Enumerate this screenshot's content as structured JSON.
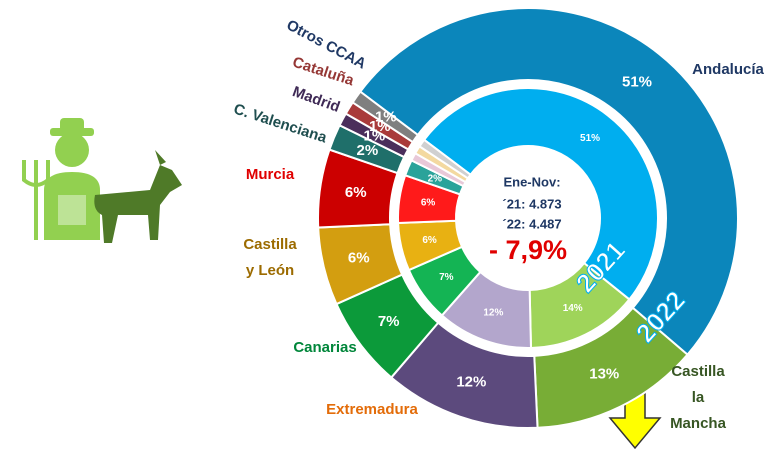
{
  "chart_data": {
    "type": "donut",
    "categories": [
      "Andalucía",
      "Castilla\nla Mancha",
      "Extremadura",
      "Canarias",
      "Castilla\ny León",
      "Murcia",
      "C. Valenciana",
      "Madrid",
      "Cataluña",
      "Otros CCAA"
    ],
    "category_colors": [
      "#1f3864",
      "#375623",
      "#e36c09",
      "#00863a",
      "#9c6b00",
      "#e00000",
      "#1f4e4f",
      "#3f2a56",
      "#953735",
      "#1f3864"
    ],
    "start_angle": -53,
    "series": [
      {
        "name": "2021",
        "ring": "inner",
        "colors": [
          "#00aeef",
          "#9fd45a",
          "#b3a6cc",
          "#14b454",
          "#e8b112",
          "#ff1a1a",
          "#2aa39a",
          "#e8c8d8",
          "#f3d9a0",
          "#d0d0d0"
        ],
        "values": [
          51,
          14,
          12,
          7,
          6,
          6,
          2,
          1,
          1,
          1
        ],
        "value_labels": [
          "51%",
          "14%",
          "12%",
          "7%",
          "6%",
          "6%",
          "2%",
          null,
          null,
          null
        ]
      },
      {
        "name": "2022",
        "ring": "outer",
        "colors": [
          "#0b86bb",
          "#78ad36",
          "#5c4a7d",
          "#0c9a3a",
          "#d39e10",
          "#cc0000",
          "#1f6f6a",
          "#4b2e5b",
          "#a93a3a",
          "#7f7f7f"
        ],
        "values": [
          51,
          13,
          12,
          7,
          6,
          6,
          2,
          1,
          1,
          1
        ],
        "value_labels": [
          "51%",
          "13%",
          "12%",
          "7%",
          "6%",
          "6%",
          "2%",
          "1%",
          "1%",
          "1%"
        ]
      }
    ],
    "center_text": [
      "Ene-Nov:",
      "´21: 4.873",
      "´22: 4.487"
    ],
    "change": "- 7,9%"
  }
}
